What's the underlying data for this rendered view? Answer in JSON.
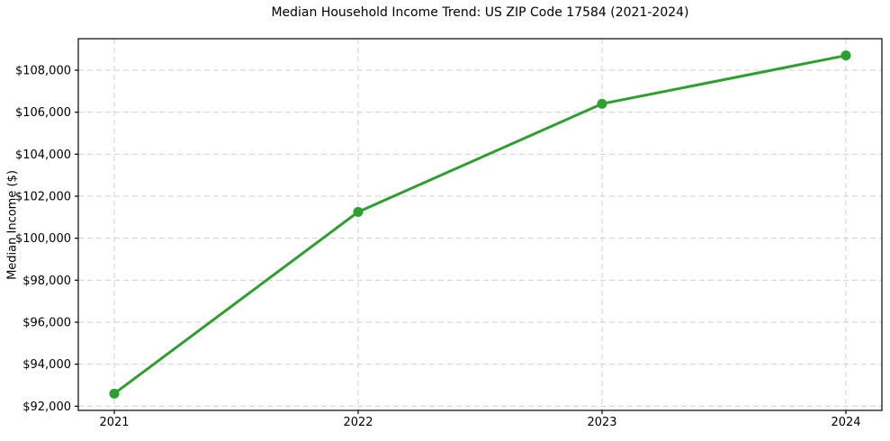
{
  "page": {
    "background": "#ffffff"
  },
  "chart_data": {
    "type": "line",
    "title": "Median Household Income Trend: US ZIP Code 17584 (2021-2024)",
    "xlabel": "",
    "ylabel": "Median Income ($)",
    "categories": [
      "2021",
      "2022",
      "2023",
      "2024"
    ],
    "series": [
      {
        "name": "Median Household Income",
        "values": [
          92600,
          101250,
          106400,
          108700
        ]
      }
    ],
    "yticks": [
      92000,
      94000,
      96000,
      98000,
      100000,
      102000,
      104000,
      106000,
      108000
    ],
    "ytick_labels": [
      "$92,000",
      "$94,000",
      "$96,000",
      "$98,000",
      "$100,000",
      "$102,000",
      "$104,000",
      "$106,000",
      "$108,000"
    ],
    "ylim": [
      91800,
      109500
    ],
    "grid": true,
    "grid_style": "dashed",
    "legend_position": "none",
    "colors": {
      "line": "#2ca02c",
      "marker": "#2ca02c",
      "grid": "#cfcfcf",
      "spine": "#000000",
      "text": "#000000",
      "background": "#ffffff"
    }
  }
}
